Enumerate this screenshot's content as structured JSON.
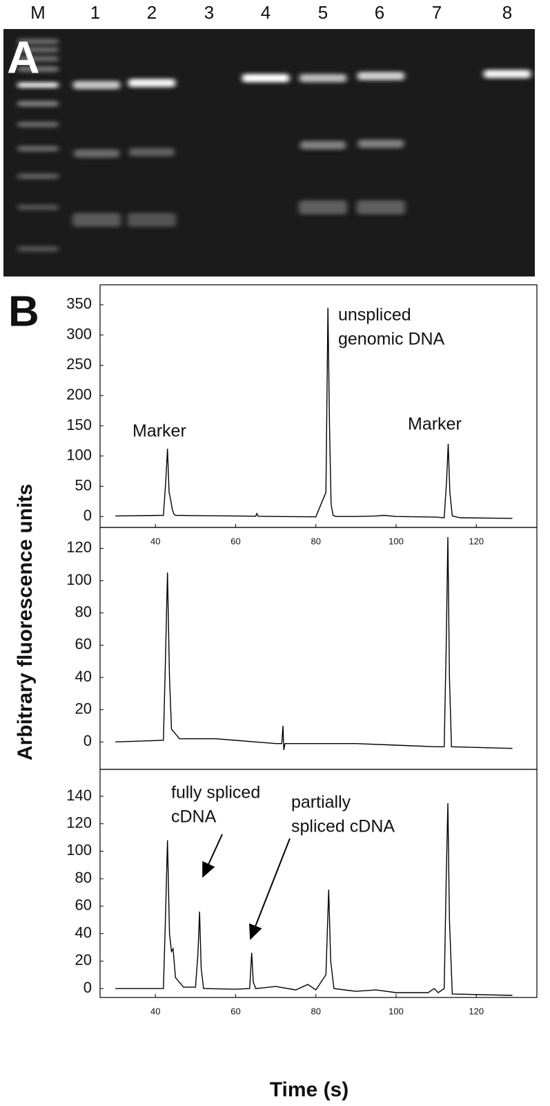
{
  "panel_a": {
    "label": "A",
    "lanes": [
      "M",
      "1",
      "2",
      "3",
      "4",
      "5",
      "6",
      "7",
      "8"
    ]
  },
  "panel_b_label": "B",
  "y_label": "Arbitrary fluorescence units",
  "x_label": "Time (s)",
  "chart_data": [
    {
      "type": "line",
      "color": "#000000",
      "x": [
        30,
        42,
        42.6,
        43,
        43.4,
        43.8,
        44.2,
        44.6,
        45,
        50,
        60,
        65,
        65.3,
        65.6,
        70,
        80,
        82.5,
        83,
        83.4,
        83.8,
        84.3,
        85,
        90,
        95,
        97,
        100,
        110,
        112,
        112.6,
        113,
        113.4,
        114,
        116,
        129
      ],
      "values": [
        1,
        2,
        60,
        112,
        40,
        28,
        12,
        4,
        2,
        1.5,
        1,
        0.5,
        5,
        0.5,
        0,
        -0.5,
        40,
        345,
        150,
        20,
        2,
        0,
        0,
        1,
        2,
        0,
        -1,
        -2,
        60,
        120,
        40,
        1,
        -2,
        -3
      ],
      "xlim": [
        26.2,
        135.1
      ],
      "ylim": [
        -18,
        383
      ],
      "xticks": [
        40,
        60,
        80,
        100,
        120
      ],
      "yticks": [
        0,
        50,
        100,
        150,
        200,
        250,
        300,
        350
      ],
      "annotations": [
        [
          "Marker"
        ],
        [
          "unspliced",
          "genomic DNA"
        ],
        [
          "Marker"
        ]
      ]
    },
    {
      "type": "line",
      "color": "#000000",
      "x": [
        30,
        42,
        42.5,
        43,
        43.5,
        44,
        45,
        46,
        55,
        60,
        70,
        71.5,
        71.8,
        72,
        72.3,
        80,
        90,
        100,
        110,
        112,
        112.5,
        112.9,
        113.3,
        113.8,
        129
      ],
      "values": [
        0,
        1,
        50,
        105,
        40,
        8,
        5,
        2,
        2,
        1,
        -1,
        -1,
        10,
        -5,
        -1,
        -1,
        -1,
        -2,
        -3,
        -3,
        60,
        127,
        40,
        -3,
        -4
      ],
      "xlim": [
        26.2,
        135.1
      ],
      "ylim": [
        -17,
        133
      ],
      "yticks": [
        0,
        20,
        40,
        60,
        80,
        100,
        120
      ]
    },
    {
      "type": "line",
      "color": "#000000",
      "x": [
        30,
        42,
        42.5,
        43,
        43.5,
        44,
        44.4,
        45,
        47,
        50,
        50.6,
        51,
        51.4,
        52,
        60,
        63.5,
        64,
        64.4,
        65,
        70,
        75,
        78,
        80,
        82.5,
        83.2,
        83.7,
        84.5,
        90,
        95,
        100,
        108,
        109.5,
        110.5,
        112,
        112.5,
        112.9,
        113.3,
        114,
        129
      ],
      "values": [
        0,
        0,
        50,
        108,
        40,
        27,
        29,
        8,
        1,
        1,
        25,
        56,
        15,
        0,
        -0.5,
        0,
        26,
        5,
        0,
        1.5,
        -1,
        3,
        -1,
        10,
        72,
        20,
        0,
        -2,
        -1,
        -3,
        -3,
        0,
        -3,
        0,
        80,
        135,
        50,
        -4,
        -5
      ],
      "xlim": [
        26.2,
        135.1
      ],
      "ylim": [
        -6.5,
        159.6
      ],
      "xticks": [
        40,
        60,
        80,
        100,
        120
      ],
      "yticks": [
        0,
        20,
        40,
        60,
        80,
        100,
        120,
        140
      ],
      "annotations": [
        [
          "fully spliced",
          "cDNA"
        ],
        [
          "partially",
          "spliced cDNA"
        ]
      ]
    }
  ]
}
